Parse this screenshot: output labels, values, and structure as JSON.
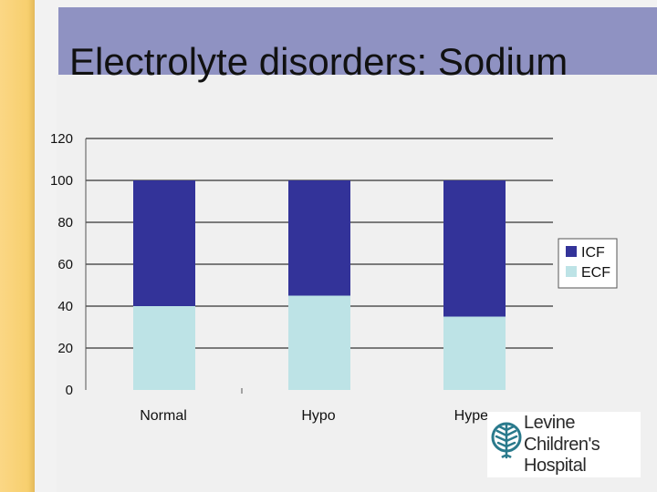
{
  "slide": {
    "title": "Electrolyte disorders: Sodium"
  },
  "chart_data": {
    "type": "bar",
    "stacked": true,
    "categories": [
      "Normal",
      "Hypo",
      "Hyper"
    ],
    "series": [
      {
        "name": "ECF",
        "values": [
          40,
          45,
          35
        ],
        "color": "#bde3e6"
      },
      {
        "name": "ICF",
        "values": [
          60,
          55,
          65
        ],
        "color": "#333399"
      }
    ],
    "ylim": [
      0,
      120
    ],
    "yticks": [
      0,
      20,
      40,
      60,
      80,
      100,
      120
    ],
    "grid": true,
    "legend_position": "right",
    "legend_order": [
      "ICF",
      "ECF"
    ]
  },
  "logo": {
    "line1": "Levine",
    "line2": "Children's",
    "line3": "Hospital",
    "accent_color": "#c0144c",
    "mark_color": "#2a7a8c"
  }
}
